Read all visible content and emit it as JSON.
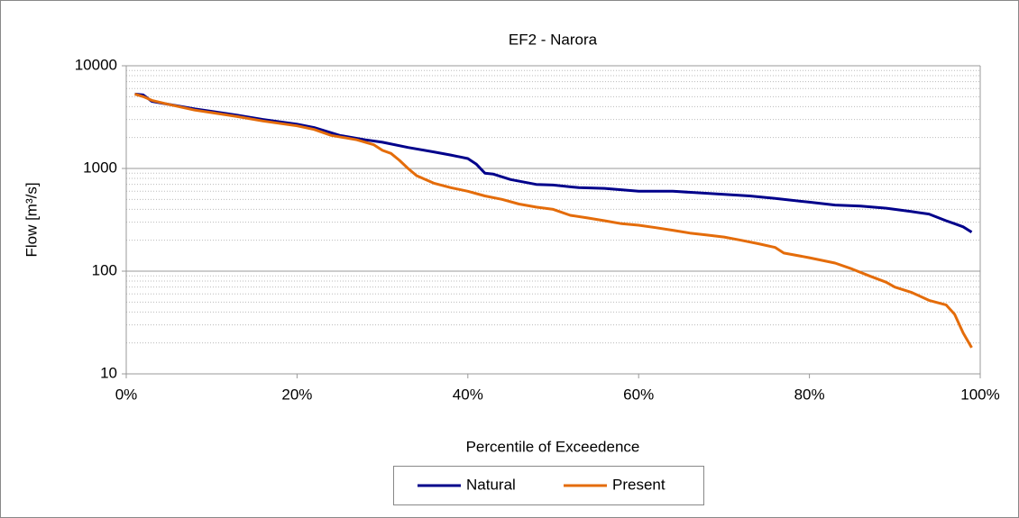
{
  "chart_data": {
    "type": "line",
    "title": "EF2 - Narora",
    "x_label": "Percentile of Exceedence",
    "y_label": "Flow [m³/s]",
    "log_y": true,
    "grid": true,
    "minor_grid": true,
    "legend": "bottom",
    "xlim": [
      0,
      100
    ],
    "xticks": [
      {
        "value": 0,
        "label": "0%"
      },
      {
        "value": 20,
        "label": "20%"
      },
      {
        "value": 40,
        "label": "40%"
      },
      {
        "value": 60,
        "label": "60%"
      },
      {
        "value": 80,
        "label": "80%"
      },
      {
        "value": 100,
        "label": "100%"
      }
    ],
    "ylim": [
      10,
      10000
    ],
    "yticks": [
      10,
      100,
      1000,
      10000
    ],
    "series": [
      {
        "name": "Natural",
        "color": "#00008b",
        "x": [
          1,
          2,
          3,
          5,
          8,
          10,
          13,
          16,
          20,
          22,
          25,
          28,
          30,
          33,
          36,
          38,
          40,
          41,
          42,
          43,
          45,
          48,
          50,
          53,
          56,
          60,
          64,
          67,
          70,
          73,
          76,
          80,
          83,
          86,
          89,
          92,
          94,
          96,
          97,
          98,
          99
        ],
        "values": [
          5300,
          5200,
          4500,
          4200,
          3800,
          3600,
          3300,
          3000,
          2700,
          2500,
          2100,
          1900,
          1800,
          1600,
          1450,
          1350,
          1250,
          1100,
          900,
          880,
          780,
          700,
          690,
          650,
          640,
          600,
          600,
          580,
          560,
          540,
          510,
          470,
          440,
          430,
          410,
          380,
          360,
          310,
          290,
          270,
          240
        ]
      },
      {
        "name": "Present",
        "color": "#e46c0a",
        "x": [
          1,
          2,
          3,
          5,
          8,
          10,
          13,
          16,
          20,
          22,
          24,
          27,
          29,
          30,
          31,
          32,
          33,
          34,
          36,
          38,
          40,
          42,
          44,
          46,
          48,
          50,
          52,
          54,
          56,
          58,
          60,
          62,
          64,
          66,
          68,
          70,
          72,
          74,
          76,
          77,
          80,
          83,
          85,
          87,
          89,
          90,
          92,
          94,
          96,
          97,
          98,
          99
        ],
        "values": [
          5300,
          5000,
          4600,
          4200,
          3700,
          3500,
          3200,
          2900,
          2600,
          2400,
          2100,
          1900,
          1700,
          1500,
          1400,
          1200,
          1000,
          850,
          720,
          650,
          600,
          540,
          500,
          450,
          420,
          400,
          350,
          330,
          310,
          290,
          280,
          265,
          250,
          235,
          225,
          215,
          200,
          185,
          170,
          150,
          135,
          120,
          105,
          90,
          78,
          70,
          62,
          52,
          47,
          38,
          25,
          18
        ]
      }
    ]
  }
}
